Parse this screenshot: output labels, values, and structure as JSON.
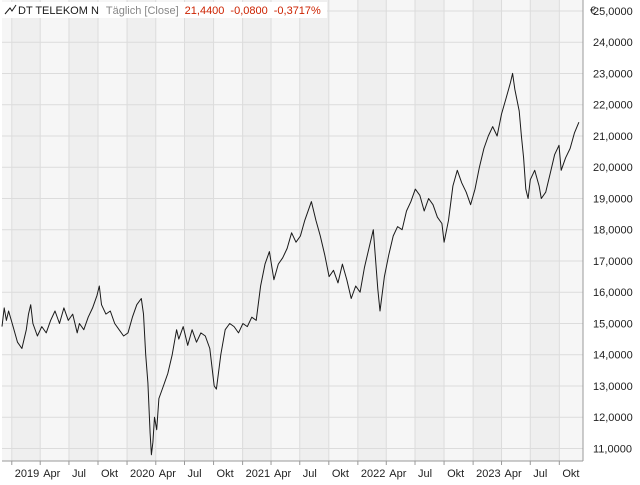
{
  "header": {
    "instrument": "DT TELEKOM N",
    "interval": "Täglich [Close]",
    "last_value": "21,4400",
    "change_abs": "-0,0800",
    "change_pct": "-0,3717%",
    "currency": "€"
  },
  "colors": {
    "line": "#1a1a1a",
    "plot_bg": "#f6f6f6",
    "band_alt": "#efefef",
    "grid": "#dcdcdc",
    "negative": "#cc2200",
    "header_muted": "#888888"
  },
  "chart_data": {
    "type": "line",
    "title": "DT TELEKOM N",
    "xlabel": "",
    "ylabel": "€",
    "ylim": [
      10.6,
      25.35
    ],
    "xlim": [
      "2018-12-01",
      "2023-12-15"
    ],
    "y_tick_values": [
      11,
      12,
      13,
      14,
      15,
      16,
      17,
      18,
      19,
      20,
      21,
      22,
      23,
      24,
      25
    ],
    "y_tick_labels": [
      "11,0000",
      "12,0000",
      "13,0000",
      "14,0000",
      "15,0000",
      "16,0000",
      "17,0000",
      "18,0000",
      "19,0000",
      "20,0000",
      "21,0000",
      "22,0000",
      "23,0000",
      "24,0000",
      "25,0000"
    ],
    "x_ticks": [
      {
        "label": "2019",
        "date": "2019-01-01"
      },
      {
        "label": "Apr",
        "date": "2019-04-01"
      },
      {
        "label": "Jul",
        "date": "2019-07-01"
      },
      {
        "label": "Okt",
        "date": "2019-10-01"
      },
      {
        "label": "2020",
        "date": "2020-01-01"
      },
      {
        "label": "Apr",
        "date": "2020-04-01"
      },
      {
        "label": "Jul",
        "date": "2020-07-01"
      },
      {
        "label": "Okt",
        "date": "2020-10-01"
      },
      {
        "label": "2021",
        "date": "2021-01-01"
      },
      {
        "label": "Apr",
        "date": "2021-04-01"
      },
      {
        "label": "Jul",
        "date": "2021-07-01"
      },
      {
        "label": "Okt",
        "date": "2021-10-01"
      },
      {
        "label": "2022",
        "date": "2022-01-01"
      },
      {
        "label": "Apr",
        "date": "2022-04-01"
      },
      {
        "label": "Jul",
        "date": "2022-07-01"
      },
      {
        "label": "Okt",
        "date": "2022-10-01"
      },
      {
        "label": "2023",
        "date": "2023-01-01"
      },
      {
        "label": "Apr",
        "date": "2023-04-01"
      },
      {
        "label": "Jul",
        "date": "2023-07-01"
      },
      {
        "label": "Okt",
        "date": "2023-10-01"
      }
    ],
    "grid": true,
    "series": [
      {
        "name": "DT TELEKOM N",
        "points": [
          [
            "2018-12-01",
            14.9
          ],
          [
            "2018-12-08",
            15.5
          ],
          [
            "2018-12-15",
            15.1
          ],
          [
            "2018-12-22",
            15.4
          ],
          [
            "2019-01-05",
            14.9
          ],
          [
            "2019-01-19",
            14.4
          ],
          [
            "2019-02-02",
            14.2
          ],
          [
            "2019-02-16",
            14.8
          ],
          [
            "2019-02-23",
            15.3
          ],
          [
            "2019-03-02",
            15.6
          ],
          [
            "2019-03-09",
            15.0
          ],
          [
            "2019-03-23",
            14.6
          ],
          [
            "2019-04-06",
            14.9
          ],
          [
            "2019-04-20",
            14.7
          ],
          [
            "2019-05-04",
            15.1
          ],
          [
            "2019-05-18",
            15.4
          ],
          [
            "2019-06-01",
            15.0
          ],
          [
            "2019-06-15",
            15.5
          ],
          [
            "2019-06-29",
            15.1
          ],
          [
            "2019-07-13",
            15.3
          ],
          [
            "2019-07-27",
            14.7
          ],
          [
            "2019-08-03",
            15.0
          ],
          [
            "2019-08-17",
            14.8
          ],
          [
            "2019-08-31",
            15.2
          ],
          [
            "2019-09-14",
            15.5
          ],
          [
            "2019-09-28",
            15.9
          ],
          [
            "2019-10-05",
            16.2
          ],
          [
            "2019-10-12",
            15.6
          ],
          [
            "2019-10-26",
            15.3
          ],
          [
            "2019-11-09",
            15.4
          ],
          [
            "2019-11-23",
            15.0
          ],
          [
            "2019-12-07",
            14.8
          ],
          [
            "2019-12-21",
            14.6
          ],
          [
            "2020-01-04",
            14.7
          ],
          [
            "2020-01-18",
            15.2
          ],
          [
            "2020-02-01",
            15.6
          ],
          [
            "2020-02-15",
            15.8
          ],
          [
            "2020-02-22",
            15.3
          ],
          [
            "2020-02-29",
            14.0
          ],
          [
            "2020-03-07",
            13.1
          ],
          [
            "2020-03-14",
            11.5
          ],
          [
            "2020-03-18",
            10.8
          ],
          [
            "2020-03-23",
            11.2
          ],
          [
            "2020-03-28",
            12.0
          ],
          [
            "2020-04-04",
            11.6
          ],
          [
            "2020-04-11",
            12.6
          ],
          [
            "2020-04-25",
            13.0
          ],
          [
            "2020-05-09",
            13.4
          ],
          [
            "2020-05-23",
            14.0
          ],
          [
            "2020-06-06",
            14.8
          ],
          [
            "2020-06-13",
            14.5
          ],
          [
            "2020-06-27",
            14.9
          ],
          [
            "2020-07-11",
            14.3
          ],
          [
            "2020-07-25",
            14.8
          ],
          [
            "2020-08-08",
            14.4
          ],
          [
            "2020-08-22",
            14.7
          ],
          [
            "2020-09-05",
            14.6
          ],
          [
            "2020-09-19",
            14.2
          ],
          [
            "2020-09-26",
            13.6
          ],
          [
            "2020-10-03",
            13.0
          ],
          [
            "2020-10-10",
            12.9
          ],
          [
            "2020-10-24",
            14.0
          ],
          [
            "2020-11-07",
            14.8
          ],
          [
            "2020-11-21",
            15.0
          ],
          [
            "2020-12-05",
            14.9
          ],
          [
            "2020-12-19",
            14.7
          ],
          [
            "2021-01-02",
            15.0
          ],
          [
            "2021-01-16",
            14.9
          ],
          [
            "2021-01-30",
            15.2
          ],
          [
            "2021-02-13",
            15.1
          ],
          [
            "2021-02-27",
            16.2
          ],
          [
            "2021-03-13",
            16.9
          ],
          [
            "2021-03-27",
            17.3
          ],
          [
            "2021-04-10",
            16.4
          ],
          [
            "2021-04-24",
            16.9
          ],
          [
            "2021-05-08",
            17.1
          ],
          [
            "2021-05-22",
            17.4
          ],
          [
            "2021-06-05",
            17.9
          ],
          [
            "2021-06-19",
            17.6
          ],
          [
            "2021-07-03",
            17.8
          ],
          [
            "2021-07-17",
            18.3
          ],
          [
            "2021-07-31",
            18.7
          ],
          [
            "2021-08-07",
            18.9
          ],
          [
            "2021-08-21",
            18.3
          ],
          [
            "2021-09-04",
            17.8
          ],
          [
            "2021-09-18",
            17.2
          ],
          [
            "2021-10-02",
            16.5
          ],
          [
            "2021-10-16",
            16.7
          ],
          [
            "2021-10-30",
            16.3
          ],
          [
            "2021-11-13",
            16.9
          ],
          [
            "2021-11-27",
            16.4
          ],
          [
            "2021-12-11",
            15.8
          ],
          [
            "2021-12-25",
            16.2
          ],
          [
            "2022-01-08",
            16.0
          ],
          [
            "2022-01-22",
            16.8
          ],
          [
            "2022-02-05",
            17.4
          ],
          [
            "2022-02-19",
            18.0
          ],
          [
            "2022-03-05",
            16.1
          ],
          [
            "2022-03-12",
            15.4
          ],
          [
            "2022-03-26",
            16.5
          ],
          [
            "2022-04-09",
            17.2
          ],
          [
            "2022-04-23",
            17.8
          ],
          [
            "2022-05-07",
            18.1
          ],
          [
            "2022-05-21",
            18.0
          ],
          [
            "2022-06-04",
            18.6
          ],
          [
            "2022-06-18",
            18.9
          ],
          [
            "2022-07-02",
            19.3
          ],
          [
            "2022-07-16",
            19.1
          ],
          [
            "2022-07-30",
            18.6
          ],
          [
            "2022-08-13",
            19.0
          ],
          [
            "2022-08-27",
            18.8
          ],
          [
            "2022-09-10",
            18.4
          ],
          [
            "2022-09-24",
            18.2
          ],
          [
            "2022-10-01",
            17.6
          ],
          [
            "2022-10-15",
            18.3
          ],
          [
            "2022-10-29",
            19.4
          ],
          [
            "2022-11-12",
            19.9
          ],
          [
            "2022-11-26",
            19.5
          ],
          [
            "2022-12-10",
            19.2
          ],
          [
            "2022-12-24",
            18.8
          ],
          [
            "2023-01-07",
            19.3
          ],
          [
            "2023-01-21",
            20.0
          ],
          [
            "2023-02-04",
            20.6
          ],
          [
            "2023-02-18",
            21.0
          ],
          [
            "2023-03-04",
            21.3
          ],
          [
            "2023-03-18",
            21.0
          ],
          [
            "2023-04-01",
            21.7
          ],
          [
            "2023-04-15",
            22.2
          ],
          [
            "2023-04-29",
            22.7
          ],
          [
            "2023-05-06",
            23.0
          ],
          [
            "2023-05-13",
            22.5
          ],
          [
            "2023-05-27",
            21.8
          ],
          [
            "2023-06-03",
            21.0
          ],
          [
            "2023-06-10",
            20.3
          ],
          [
            "2023-06-17",
            19.3
          ],
          [
            "2023-06-24",
            19.0
          ],
          [
            "2023-07-01",
            19.6
          ],
          [
            "2023-07-15",
            19.9
          ],
          [
            "2023-07-29",
            19.4
          ],
          [
            "2023-08-05",
            19.0
          ],
          [
            "2023-08-19",
            19.2
          ],
          [
            "2023-09-02",
            19.8
          ],
          [
            "2023-09-16",
            20.4
          ],
          [
            "2023-09-30",
            20.7
          ],
          [
            "2023-10-07",
            19.9
          ],
          [
            "2023-10-21",
            20.3
          ],
          [
            "2023-11-04",
            20.6
          ],
          [
            "2023-11-18",
            21.1
          ],
          [
            "2023-12-02",
            21.44
          ]
        ]
      }
    ]
  }
}
